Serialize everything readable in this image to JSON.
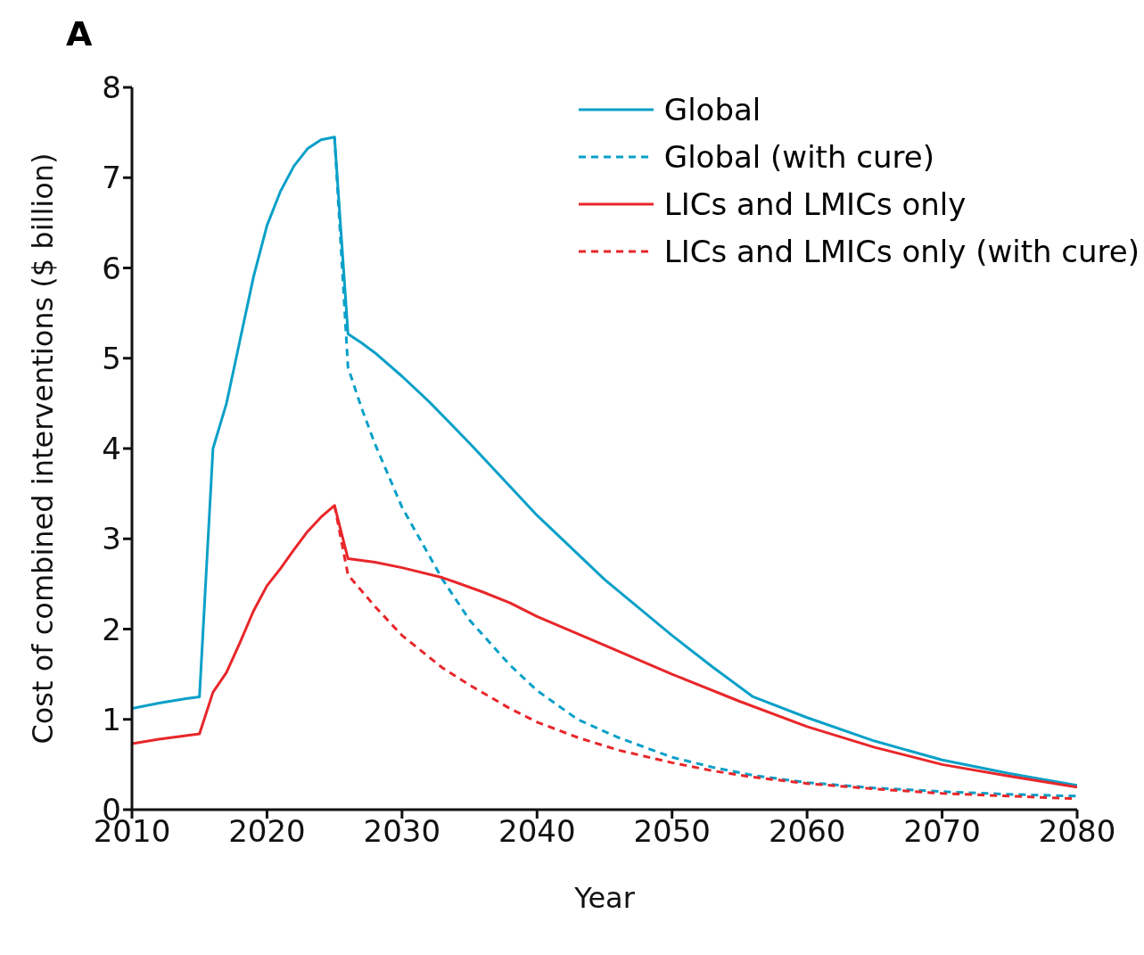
{
  "chart_data": {
    "type": "line",
    "xlabel": "Year",
    "ylabel": "Cost of combined interventions ($ billion)",
    "annotations": [
      "A"
    ],
    "xlim": [
      2010,
      2080
    ],
    "xticks": [
      2010,
      2020,
      2030,
      2040,
      2050,
      2060,
      2070,
      2080
    ],
    "ylim": [
      0,
      8
    ],
    "yticks": [
      0,
      1,
      2,
      3,
      4,
      5,
      6,
      7,
      8
    ],
    "grid": false,
    "legend": "top right",
    "marker": "none",
    "series": [
      {
        "name": "Global",
        "color": "#0aa0c8",
        "line_style": "solid",
        "x": [
          2010,
          2012,
          2014,
          2015,
          2016,
          2017,
          2018,
          2019,
          2020,
          2021,
          2022,
          2023,
          2024,
          2025,
          2026,
          2027,
          2028,
          2030,
          2032,
          2035,
          2040,
          2045,
          2050,
          2053,
          2056,
          2060,
          2065,
          2070,
          2075,
          2080
        ],
        "values": [
          1.12,
          1.18,
          1.23,
          1.25,
          4.0,
          4.5,
          5.2,
          5.9,
          6.47,
          6.85,
          7.13,
          7.32,
          7.42,
          7.45,
          5.27,
          5.17,
          5.06,
          4.8,
          4.52,
          4.06,
          3.26,
          2.55,
          1.93,
          1.58,
          1.25,
          1.02,
          0.76,
          0.55,
          0.4,
          0.27
        ]
      },
      {
        "name": "Global (with cure)",
        "color": "#0aa0c8",
        "line_style": "dashed",
        "x": [
          2025,
          2026,
          2027,
          2028,
          2030,
          2033,
          2035,
          2038,
          2040,
          2043,
          2046,
          2050,
          2053,
          2056,
          2060,
          2065,
          2070,
          2075,
          2080
        ],
        "values": [
          7.45,
          4.9,
          4.45,
          4.05,
          3.35,
          2.55,
          2.1,
          1.6,
          1.32,
          1.0,
          0.8,
          0.58,
          0.47,
          0.38,
          0.3,
          0.24,
          0.2,
          0.17,
          0.15
        ]
      },
      {
        "name": "LICs and LMICs only",
        "color": "#e8262a",
        "line_style": "solid",
        "x": [
          2010,
          2012,
          2014,
          2015,
          2016,
          2017,
          2018,
          2019,
          2020,
          2021,
          2022,
          2023,
          2024,
          2025,
          2026,
          2028,
          2030,
          2033,
          2036,
          2038,
          2040,
          2045,
          2050,
          2055,
          2060,
          2065,
          2070,
          2075,
          2080
        ],
        "values": [
          0.73,
          0.78,
          0.82,
          0.84,
          1.3,
          1.52,
          1.85,
          2.2,
          2.48,
          2.67,
          2.88,
          3.08,
          3.24,
          3.37,
          2.78,
          2.74,
          2.68,
          2.57,
          2.41,
          2.29,
          2.14,
          1.82,
          1.5,
          1.2,
          0.92,
          0.69,
          0.5,
          0.37,
          0.25
        ]
      },
      {
        "name": "LICs and LMICs only (with cure)",
        "color": "#e8262a",
        "line_style": "dashed",
        "x": [
          2025,
          2026,
          2028,
          2030,
          2033,
          2035,
          2038,
          2040,
          2043,
          2046,
          2050,
          2053,
          2056,
          2060,
          2065,
          2070,
          2075,
          2080
        ],
        "values": [
          3.37,
          2.6,
          2.25,
          1.93,
          1.57,
          1.38,
          1.12,
          0.97,
          0.8,
          0.66,
          0.52,
          0.43,
          0.36,
          0.29,
          0.23,
          0.18,
          0.15,
          0.12
        ]
      }
    ]
  }
}
